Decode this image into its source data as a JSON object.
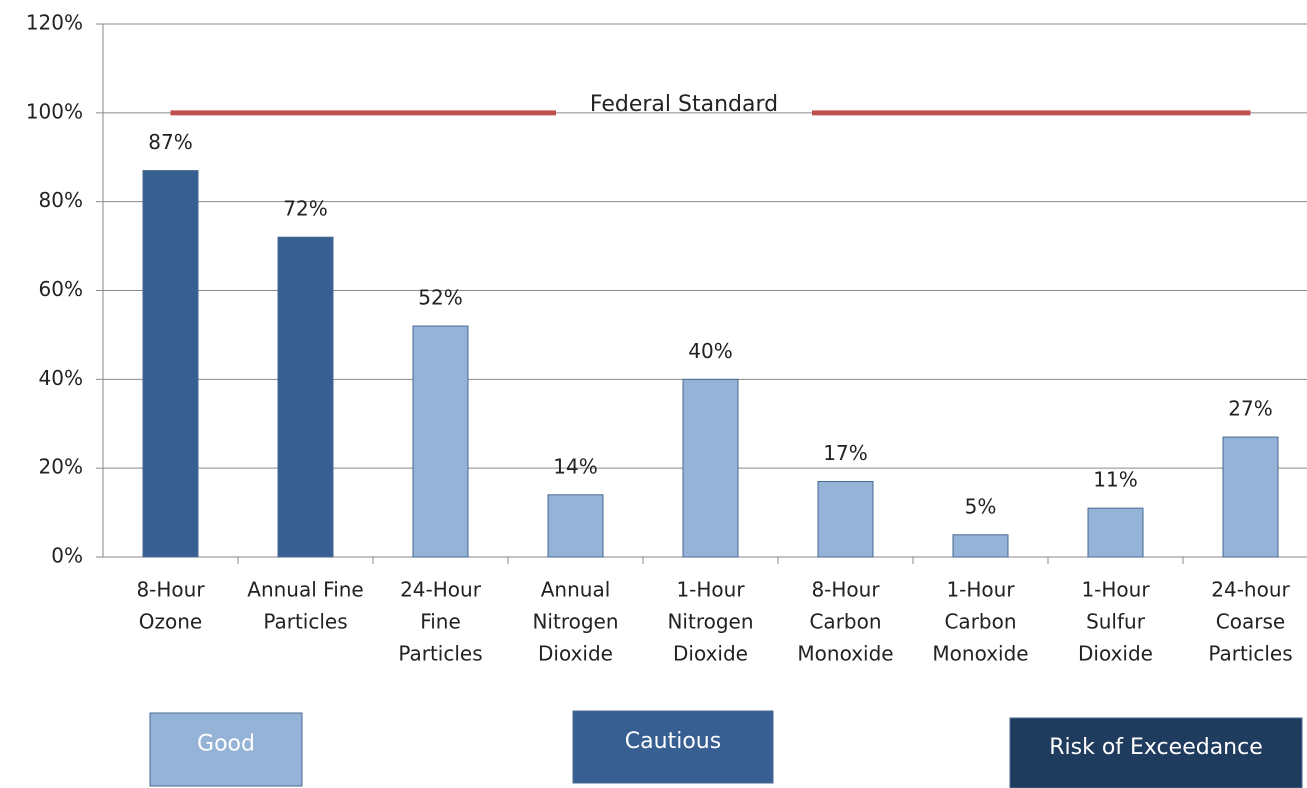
{
  "chart_data": {
    "type": "bar",
    "categories": [
      [
        "8-Hour",
        "Ozone"
      ],
      [
        "Annual Fine",
        "Particles"
      ],
      [
        "24-Hour",
        "Fine",
        "Particles"
      ],
      [
        "Annual",
        "Nitrogen",
        "Dioxide"
      ],
      [
        "1-Hour",
        "Nitrogen",
        "Dioxide"
      ],
      [
        "8-Hour",
        "Carbon",
        "Monoxide"
      ],
      [
        "1-Hour",
        "Carbon",
        "Monoxide"
      ],
      [
        "1-Hour",
        "Sulfur",
        "Dioxide"
      ],
      [
        "24-hour",
        "Coarse",
        "Particles"
      ]
    ],
    "values": [
      87,
      72,
      52,
      14,
      40,
      17,
      5,
      11,
      27
    ],
    "value_labels": [
      "87%",
      "72%",
      "52%",
      "14%",
      "40%",
      "17%",
      "5%",
      "11%",
      "27%"
    ],
    "colors": [
      "#375f92",
      "#375f92",
      "#95b3d7",
      "#95b3d7",
      "#95b3d7",
      "#95b3d7",
      "#95b3d7",
      "#95b3d7",
      "#95b3d7"
    ],
    "ylim": [
      0,
      120
    ],
    "yticks": [
      {
        "value": 0,
        "label": "0%"
      },
      {
        "value": 20,
        "label": "20%"
      },
      {
        "value": 40,
        "label": "40%"
      },
      {
        "value": 60,
        "label": "60%"
      },
      {
        "value": 80,
        "label": "80%"
      },
      {
        "value": 100,
        "label": "100%"
      },
      {
        "value": 120,
        "label": "120%"
      }
    ],
    "grid": true,
    "reference_line": {
      "value": 100,
      "label": "Federal Standard",
      "color": "#c0504d"
    },
    "legend": [
      {
        "label": "Good",
        "color": "#95b3d7"
      },
      {
        "label": "Cautious",
        "color": "#375f92"
      },
      {
        "label": "Risk of Exceedance",
        "color": "#1f3b5e"
      }
    ]
  }
}
